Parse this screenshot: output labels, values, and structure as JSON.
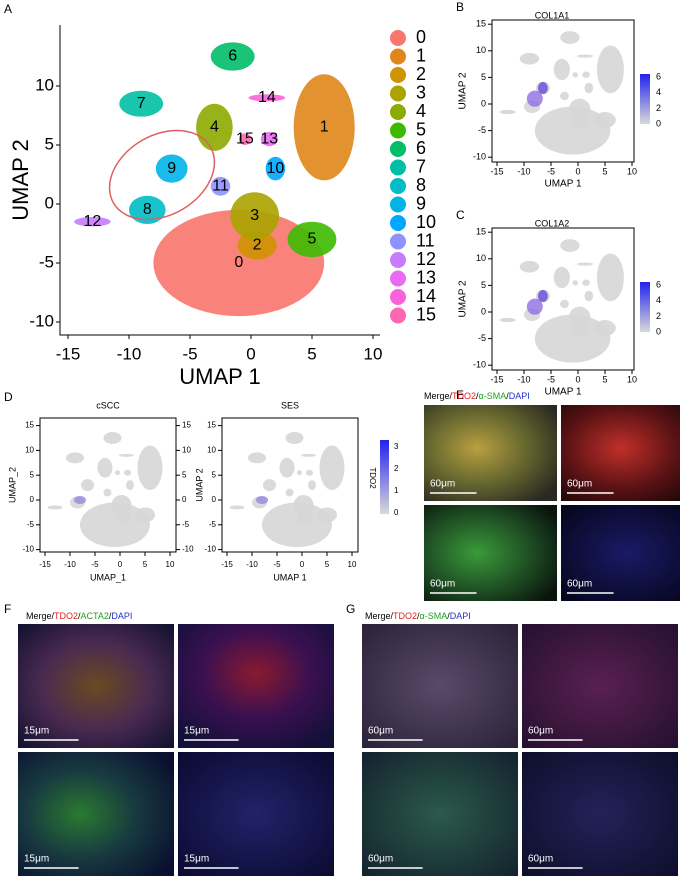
{
  "panels": [
    {
      "label": "A",
      "xlabel": "UMAP 1",
      "ylabel": "UMAP 2",
      "xticks": [
        "-15",
        "-10",
        "-5",
        "0",
        "5",
        "10"
      ],
      "yticks": [
        "10",
        "5",
        "0",
        "-5",
        "-10"
      ],
      "clusters": [
        "0",
        "1",
        "2",
        "3",
        "4",
        "5",
        "6",
        "7",
        "8",
        "9",
        "10",
        "11",
        "12",
        "13",
        "14",
        "15"
      ],
      "colors": [
        "#f8766d",
        "#e0861a",
        "#cf9400",
        "#aaa300",
        "#8cab00",
        "#3dba00",
        "#00bd68",
        "#00bfa4",
        "#00bcc6",
        "#00b4e8",
        "#00a6ff",
        "#8f91ff",
        "#c77cff",
        "#e76bf3",
        "#fa62db",
        "#ff66b0"
      ]
    },
    {
      "label": "B",
      "title": "COL1A1",
      "xlabel": "UMAP 1",
      "ylabel": "UMAP 2",
      "xticks": [
        "-15",
        "-10",
        "-5",
        "0",
        "5",
        "10"
      ],
      "yticks": [
        "15",
        "10",
        "5",
        "0",
        "-5",
        "-10"
      ],
      "colorbar": [
        "6",
        "4",
        "2",
        "0"
      ]
    },
    {
      "label": "C",
      "title": "COL1A2",
      "xlabel": "UMAP 1",
      "ylabel": "UMAP 2",
      "xticks": [
        "-15",
        "-10",
        "-5",
        "0",
        "5",
        "10"
      ],
      "yticks": [
        "15",
        "10",
        "5",
        "0",
        "-5",
        "-10"
      ],
      "colorbar": [
        "6",
        "4",
        "2",
        "0"
      ]
    },
    {
      "label": "D",
      "plots": [
        {
          "title": "cSCC",
          "xlabel": "UMAP_1",
          "ylabel": "UMAP_2",
          "xticks": [
            "-15",
            "-10",
            "-5",
            "0",
            "5",
            "10"
          ],
          "yticks": [
            "15",
            "10",
            "5",
            "0",
            "-5",
            "-10"
          ],
          "yticks_right": [
            "15",
            "10",
            "5",
            "0",
            "-5",
            "-10"
          ]
        },
        {
          "title": "SES",
          "xlabel": "UMAP 1",
          "ylabel": "UMAP 2",
          "xticks": [
            "-15",
            "-10",
            "-5",
            "0",
            "5",
            "10"
          ],
          "yticks": [
            "15",
            "10",
            "5",
            "0",
            "-5",
            "-10"
          ]
        }
      ],
      "colorbar_title": "TDO2",
      "colorbar": [
        "3",
        "2",
        "1",
        "0"
      ]
    },
    {
      "label": "E",
      "stain": [
        "Merge/",
        "TDO2",
        "/",
        "α-SMA",
        "/",
        "DAPI"
      ],
      "scale": [
        "60μm",
        "60μm",
        "60μm",
        "60μm"
      ]
    },
    {
      "label": "F",
      "stain": [
        "Merge/",
        "TDO2",
        "/",
        "ACTA2",
        "/",
        "DAPI"
      ],
      "scale": [
        "15μm",
        "15μm",
        "15μm",
        "15μm"
      ]
    },
    {
      "label": "G",
      "stain": [
        "Merge/",
        "TDO2",
        "/",
        "α-SMA",
        "/",
        "DAPI"
      ],
      "scale": [
        "60μm",
        "60μm",
        "60μm",
        "60μm"
      ]
    }
  ]
}
